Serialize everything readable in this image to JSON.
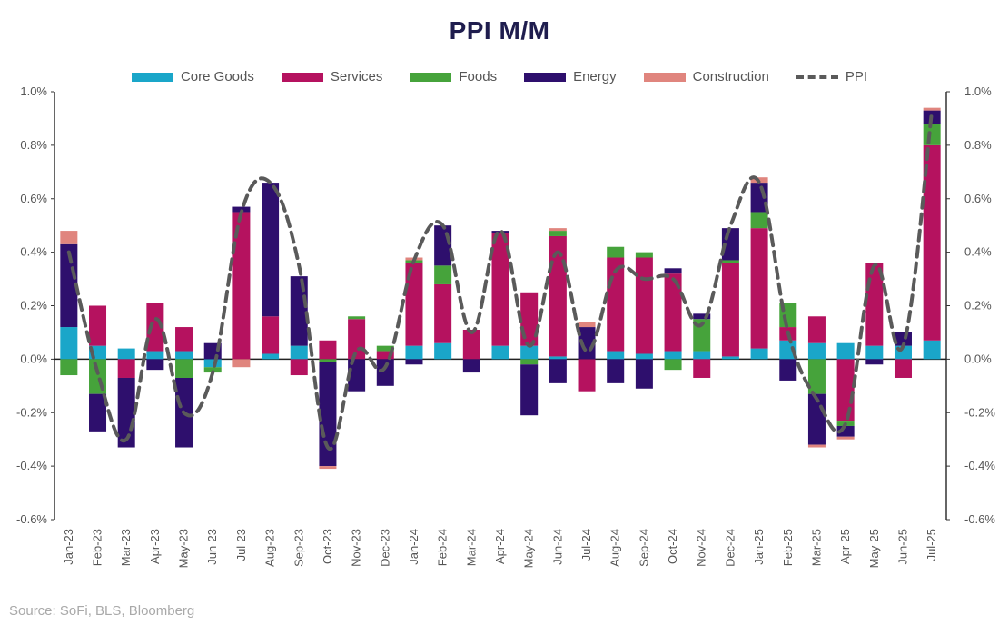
{
  "chart_data": {
    "type": "bar",
    "title": "PPI M/M",
    "source": "Source: SoFi, BLS, Bloomberg",
    "categories": [
      "Jan-23",
      "Feb-23",
      "Mar-23",
      "Apr-23",
      "May-23",
      "Jun-23",
      "Jul-23",
      "Aug-23",
      "Sep-23",
      "Oct-23",
      "Nov-23",
      "Dec-23",
      "Jan-24",
      "Feb-24",
      "Mar-24",
      "Apr-24",
      "May-24",
      "Jun-24",
      "Jul-24",
      "Aug-24",
      "Sep-24",
      "Oct-24",
      "Nov-24",
      "Dec-24",
      "Jan-25",
      "Feb-25",
      "Mar-25",
      "Apr-25",
      "May-25",
      "Jun-25",
      "Jul-25"
    ],
    "ylim": [
      -0.6,
      1.0
    ],
    "yticks": [
      "-0.6%",
      "-0.4%",
      "-0.2%",
      "0.0%",
      "0.2%",
      "0.4%",
      "0.6%",
      "0.8%",
      "1.0%"
    ],
    "legend_position": "top",
    "series": [
      {
        "name": "Core Goods",
        "color": "#1aa6c9",
        "values": [
          0.12,
          0.05,
          0.04,
          0.03,
          0.03,
          -0.03,
          0.0,
          0.02,
          0.05,
          0.0,
          0.0,
          0.0,
          0.05,
          0.06,
          0.0,
          0.05,
          0.05,
          0.01,
          0.0,
          0.03,
          0.02,
          0.03,
          0.03,
          0.01,
          0.04,
          0.07,
          0.06,
          0.06,
          0.05,
          0.05,
          0.07
        ]
      },
      {
        "name": "Services",
        "color": "#b5125f",
        "values": [
          0.0,
          0.15,
          -0.07,
          0.18,
          0.09,
          0.0,
          0.55,
          0.14,
          -0.06,
          0.07,
          0.15,
          0.03,
          0.31,
          0.22,
          0.11,
          0.42,
          0.2,
          0.45,
          -0.12,
          0.35,
          0.36,
          0.29,
          -0.07,
          0.35,
          0.45,
          0.05,
          0.1,
          -0.23,
          0.31,
          -0.07,
          0.73
        ]
      },
      {
        "name": "Foods",
        "color": "#46a33b",
        "values": [
          -0.06,
          -0.13,
          0.0,
          0.0,
          -0.07,
          -0.02,
          0.0,
          0.0,
          0.0,
          -0.01,
          0.01,
          0.02,
          0.01,
          0.07,
          0.0,
          0.0,
          -0.02,
          0.02,
          0.0,
          0.04,
          0.02,
          -0.04,
          0.12,
          0.01,
          0.06,
          0.09,
          -0.13,
          -0.02,
          0.0,
          0.0,
          0.08
        ]
      },
      {
        "name": "Energy",
        "color": "#2e0f6d",
        "values": [
          0.31,
          -0.14,
          -0.26,
          -0.04,
          -0.26,
          0.06,
          0.02,
          0.5,
          0.26,
          -0.39,
          -0.12,
          -0.1,
          -0.02,
          0.15,
          -0.05,
          0.01,
          -0.19,
          -0.09,
          0.12,
          -0.09,
          -0.11,
          0.02,
          0.02,
          0.12,
          0.11,
          -0.08,
          -0.19,
          -0.04,
          -0.02,
          0.05,
          0.05
        ]
      },
      {
        "name": "Construction",
        "color": "#e0857e",
        "values": [
          0.05,
          0.0,
          0.0,
          0.0,
          0.0,
          0.0,
          -0.03,
          0.0,
          0.0,
          -0.01,
          0.0,
          0.0,
          0.01,
          0.0,
          0.0,
          0.0,
          0.0,
          0.01,
          0.02,
          0.0,
          0.0,
          0.0,
          0.0,
          0.0,
          0.02,
          0.0,
          -0.01,
          -0.01,
          0.0,
          0.0,
          0.01
        ]
      }
    ],
    "line": {
      "name": "PPI",
      "color": "#5a5a5a",
      "values": [
        0.4,
        -0.05,
        -0.3,
        0.15,
        -0.2,
        -0.05,
        0.55,
        0.66,
        0.35,
        -0.33,
        0.03,
        -0.03,
        0.37,
        0.5,
        0.1,
        0.48,
        0.05,
        0.4,
        0.03,
        0.33,
        0.3,
        0.3,
        0.13,
        0.5,
        0.66,
        0.1,
        -0.15,
        -0.24,
        0.35,
        0.05,
        0.93
      ]
    }
  }
}
